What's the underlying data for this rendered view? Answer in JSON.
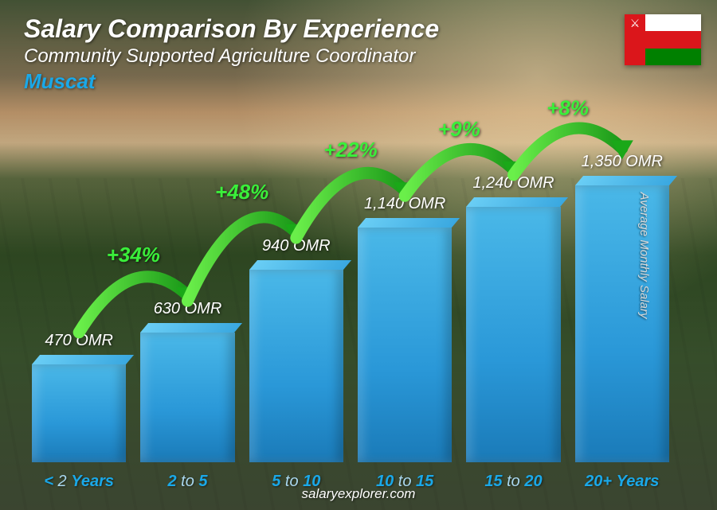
{
  "header": {
    "title": "Salary Comparison By Experience",
    "title_fontsize": 32,
    "subtitle": "Community Supported Agriculture Coordinator",
    "subtitle_fontsize": 24,
    "location": "Muscat",
    "location_fontsize": 26,
    "location_color": "#1aa8e8"
  },
  "flag": {
    "country": "Oman",
    "stripes": [
      "#ffffff",
      "#db161b",
      "#008000"
    ],
    "band_color": "#db161b",
    "emblem": "⚔"
  },
  "y_axis_label": "Average Monthly Salary",
  "footer": "salaryexplorer.com",
  "chart": {
    "type": "bar",
    "currency": "OMR",
    "max_value": 1350,
    "bar_color_top": "#4ab8e8",
    "bar_color_bottom": "#1a7ab8",
    "value_color": "#ffffff",
    "xlabel_color": "#1aa8e8",
    "pct_color": "#3aef3a",
    "arrow_color": "#1aa818",
    "bars": [
      {
        "label_prefix": "<",
        "label_main": " 2 ",
        "label_suffix": "Years",
        "value": 470,
        "value_label": "470 OMR",
        "height_pct": 28,
        "pct": null
      },
      {
        "label_prefix": "2",
        "label_main": " to ",
        "label_suffix": "5",
        "value": 630,
        "value_label": "630 OMR",
        "height_pct": 37,
        "pct": "+34%"
      },
      {
        "label_prefix": "5",
        "label_main": " to ",
        "label_suffix": "10",
        "value": 940,
        "value_label": "940 OMR",
        "height_pct": 55,
        "pct": "+48%"
      },
      {
        "label_prefix": "10",
        "label_main": " to ",
        "label_suffix": "15",
        "value": 1140,
        "value_label": "1,140 OMR",
        "height_pct": 67,
        "pct": "+22%"
      },
      {
        "label_prefix": "15",
        "label_main": " to ",
        "label_suffix": "20",
        "value": 1240,
        "value_label": "1,240 OMR",
        "height_pct": 73,
        "pct": "+9%"
      },
      {
        "label_prefix": "20+",
        "label_main": " ",
        "label_suffix": "Years",
        "value": 1350,
        "value_label": "1,350 OMR",
        "height_pct": 79,
        "pct": "+8%"
      }
    ]
  }
}
